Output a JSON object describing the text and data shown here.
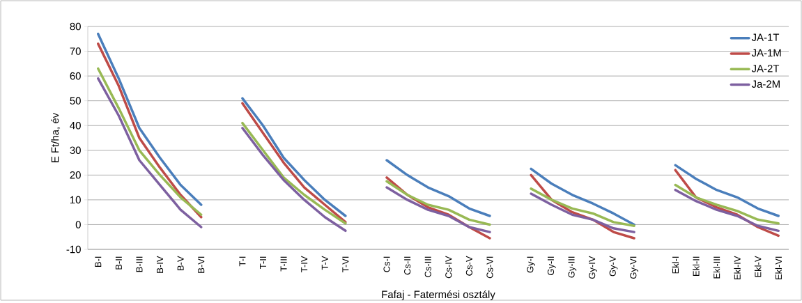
{
  "chart_data": {
    "type": "line",
    "xlabel": "Fafaj - Fatermési osztály",
    "ylabel": "E Ft/ha, év",
    "categories": [
      "B-I",
      "B-II",
      "B-III",
      "B-IV",
      "B-V",
      "B-VI",
      null,
      "T-I",
      "T-II",
      "T-III",
      "T-IV",
      "T-V",
      "T-VI",
      null,
      "Cs-I",
      "Cs-II",
      "Cs-III",
      "Cs-IV",
      "Cs-V",
      "Cs-VI",
      null,
      "Gy-I",
      "Gy-II",
      "Gy-III",
      "Gy-IV",
      "Gy-V",
      "Gy-VI",
      null,
      "Ekl-I",
      "Ekl-II",
      "Ekl-III",
      "Ekl-IV",
      "Ekl-V",
      "Ekl-VI"
    ],
    "series": [
      {
        "name": "JA-1T",
        "color": "#4a7ebb",
        "values": [
          77,
          59,
          39,
          27,
          16,
          8,
          null,
          51,
          40,
          27,
          18,
          10,
          3.5,
          null,
          26,
          20,
          15,
          11.5,
          6.5,
          3.5,
          null,
          22.5,
          16.5,
          12,
          8.5,
          4.5,
          0,
          null,
          24,
          18.5,
          14,
          11,
          6.5,
          3.5
        ]
      },
      {
        "name": "JA-1M",
        "color": "#be4b48",
        "values": [
          73,
          56,
          35,
          23,
          12,
          3,
          null,
          49,
          37,
          25,
          15,
          8,
          1,
          null,
          19,
          12,
          7,
          4,
          -1,
          -5.5,
          null,
          20,
          10,
          5,
          2,
          -3,
          -5.5,
          null,
          22,
          11,
          7,
          4,
          -1,
          -4.5
        ]
      },
      {
        "name": "JA-2T",
        "color": "#98b954",
        "values": [
          63,
          47,
          30,
          20,
          11,
          4,
          null,
          41,
          30,
          19,
          12,
          6,
          0.5,
          null,
          17.5,
          12,
          8,
          6,
          2,
          0,
          null,
          14.5,
          10,
          6.5,
          4.5,
          1,
          -0.5,
          null,
          16,
          11,
          8,
          5.5,
          2,
          0.5
        ]
      },
      {
        "name": "Ja-2M",
        "color": "#7d60a0",
        "values": [
          59,
          44,
          26,
          16,
          6,
          -1,
          null,
          39,
          28,
          18,
          10,
          3,
          -2.5,
          null,
          15,
          10,
          6,
          3.5,
          -1,
          -3,
          null,
          12.5,
          8,
          4,
          2,
          -1.5,
          -3,
          null,
          14,
          9.5,
          6,
          3.5,
          -0.5,
          -2.5
        ]
      }
    ],
    "ylim": [
      -10,
      80
    ],
    "yticks": [
      -10,
      0,
      10,
      20,
      30,
      40,
      50,
      60,
      70,
      80
    ],
    "grid": "y",
    "legend": "top right",
    "marker": "none",
    "line_style": "solid"
  }
}
